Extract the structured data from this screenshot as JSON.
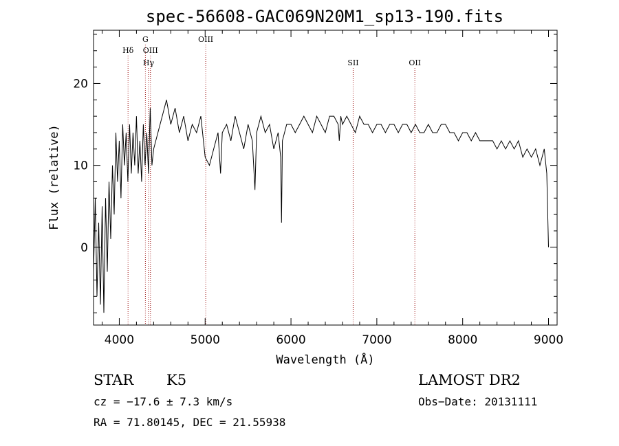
{
  "chart_data": {
    "type": "line",
    "title": "spec-56608-GAC069N20M1_sp13-190.fits",
    "xlabel": "Wavelength (Å)",
    "ylabel": "Flux (relative)",
    "xlim": [
      3700,
      9100
    ],
    "ylim": [
      -9.5,
      26.5
    ],
    "xticks": [
      4000,
      5000,
      6000,
      7000,
      8000,
      9000
    ],
    "yticks": [
      0,
      10,
      20
    ],
    "xtick_labels": [
      "4000",
      "5000",
      "6000",
      "7000",
      "8000",
      "9000"
    ],
    "ytick_labels": [
      "0",
      "10",
      "20"
    ],
    "grid": false,
    "line_color": "#000000",
    "marker_color": "#a01818",
    "spectral_lines": [
      {
        "name": "Hδ",
        "wavelength": 4102,
        "label_row": 1
      },
      {
        "name": "G",
        "wavelength": 4304,
        "label_row": 0
      },
      {
        "name": "OIII",
        "wavelength": 4363,
        "label_row": 1
      },
      {
        "name": "Hγ",
        "wavelength": 4341,
        "label_row": 2
      },
      {
        "name": "OIII",
        "wavelength": 5007,
        "label_row": 0
      },
      {
        "name": "SII",
        "wavelength": 6724,
        "label_row": 2
      },
      {
        "name": "OII",
        "wavelength": 7443,
        "label_row": 2
      }
    ],
    "series": [
      {
        "x": [
          3700,
          3720,
          3740,
          3760,
          3780,
          3800,
          3820,
          3840,
          3860,
          3880,
          3900,
          3920,
          3940,
          3960,
          3980,
          4000,
          4020,
          4040,
          4060,
          4080,
          4100,
          4120,
          4140,
          4160,
          4180,
          4200,
          4220,
          4240,
          4260,
          4280,
          4300,
          4320,
          4340,
          4360,
          4380,
          4400,
          4450,
          4500,
          4550,
          4600,
          4650,
          4700,
          4750,
          4800,
          4850,
          4900,
          4950,
          5000,
          5050,
          5100,
          5150,
          5180,
          5200,
          5250,
          5300,
          5350,
          5400,
          5450,
          5500,
          5550,
          5580,
          5600,
          5650,
          5700,
          5750,
          5800,
          5850,
          5880,
          5890,
          5900,
          5950,
          6000,
          6050,
          6100,
          6150,
          6200,
          6250,
          6300,
          6350,
          6400,
          6450,
          6500,
          6550,
          6563,
          6580,
          6600,
          6650,
          6700,
          6750,
          6800,
          6850,
          6900,
          6950,
          7000,
          7050,
          7100,
          7150,
          7200,
          7250,
          7300,
          7350,
          7400,
          7450,
          7500,
          7550,
          7600,
          7650,
          7700,
          7750,
          7800,
          7850,
          7900,
          7950,
          8000,
          8050,
          8100,
          8150,
          8200,
          8250,
          8300,
          8350,
          8400,
          8450,
          8500,
          8550,
          8600,
          8650,
          8700,
          8750,
          8800,
          8850,
          8900,
          8950,
          8980,
          9000
        ],
        "y": [
          -3,
          6,
          -6,
          3,
          -7,
          5,
          -8,
          6,
          -3,
          8,
          1,
          10,
          4,
          14,
          8,
          13,
          6,
          15,
          10,
          14,
          8,
          15,
          9,
          14,
          10,
          16,
          9,
          13,
          8,
          15,
          10,
          14,
          9,
          17,
          10,
          12,
          14,
          16,
          18,
          15,
          17,
          14,
          16,
          13,
          15,
          14,
          16,
          11,
          10,
          12,
          14,
          9,
          14,
          15,
          13,
          16,
          14,
          12,
          15,
          13,
          7,
          14,
          16,
          14,
          15,
          12,
          14,
          11,
          3,
          13,
          15,
          15,
          14,
          15,
          16,
          15,
          14,
          16,
          15,
          14,
          16,
          16,
          15,
          13,
          16,
          15,
          16,
          15,
          14,
          16,
          15,
          15,
          14,
          15,
          15,
          14,
          15,
          15,
          14,
          15,
          15,
          14,
          15,
          14,
          14,
          15,
          14,
          14,
          15,
          15,
          14,
          14,
          13,
          14,
          14,
          13,
          14,
          13,
          13,
          13,
          13,
          12,
          13,
          12,
          13,
          12,
          13,
          11,
          12,
          11,
          12,
          10,
          12,
          9,
          0
        ]
      }
    ],
    "info": {
      "object_class": "STAR",
      "subclass": "K5",
      "velocity": "cz = −17.6 ± 7.3 km/s",
      "coordinates": "RA =  71.80145, DEC =  21.55938",
      "survey": "LAMOST DR2",
      "obs_date": "Obs−Date: 20131111"
    }
  }
}
